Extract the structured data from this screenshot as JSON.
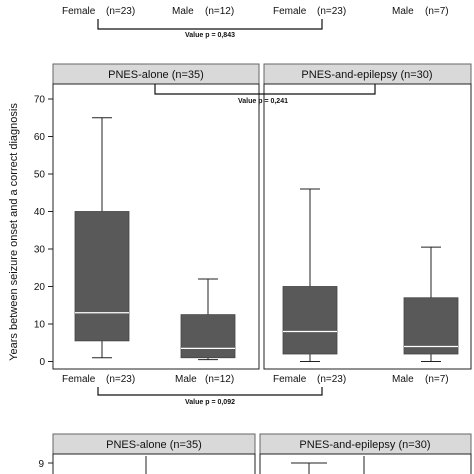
{
  "top_fragment": {
    "categories": [
      "Female",
      "Male",
      "Female",
      "Male"
    ],
    "counts": [
      "(n=23)",
      "(n=12)",
      "(n=23)",
      "(n=7)"
    ],
    "pvalue_label": "Value p = 0,843"
  },
  "chart_data": {
    "type": "box",
    "ylabel": "Years between seizure onset and a correct diagnosis",
    "xlabel": "",
    "ylim": [
      -2,
      74
    ],
    "yticks": [
      0,
      10,
      20,
      30,
      40,
      50,
      60,
      70
    ],
    "ytick_labels": [
      "0",
      "10",
      "20",
      "30",
      "40",
      "50",
      "60",
      "70"
    ],
    "panels": [
      {
        "title": "PNES-alone (n=35)",
        "groups": [
          {
            "category": "Female",
            "n_label": "(n=23)",
            "min": 1,
            "q1": 5.5,
            "median": 13,
            "q3": 40,
            "max": 65
          },
          {
            "category": "Male",
            "n_label": "(n=12)",
            "min": 0.5,
            "q1": 1,
            "median": 3.5,
            "q3": 12.5,
            "max": 22
          }
        ]
      },
      {
        "title": "PNES-and-epilepsy (n=30)",
        "groups": [
          {
            "category": "Female",
            "n_label": "(n=23)",
            "min": 0,
            "q1": 2,
            "median": 8,
            "q3": 20,
            "max": 46
          },
          {
            "category": "Male",
            "n_label": "(n=7)",
            "min": 0,
            "q1": 2,
            "median": 4,
            "q3": 17,
            "max": 30.5
          }
        ]
      }
    ],
    "annotations": {
      "between_panels": "Value p = 0,241",
      "between_females": "Value p = 0,092"
    },
    "colors": {
      "box": "#595959",
      "median": "#ffffff",
      "strip": "#d9d9d9"
    }
  },
  "bottom_fragment": {
    "panel_titles": [
      "PNES-alone (n=35)",
      "PNES-and-epilepsy (n=30)"
    ],
    "ytick_label": "9"
  }
}
